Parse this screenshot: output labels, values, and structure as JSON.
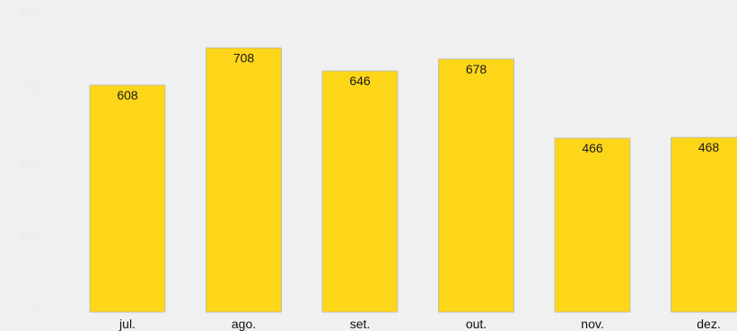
{
  "colors": {
    "background": "#f0f0f0",
    "bar_fill": "#fdd619",
    "bar_stroke": "#b8b8b8"
  },
  "chart_data": {
    "type": "bar",
    "categories": [
      "jul.",
      "ago.",
      "set.",
      "out.",
      "nov.",
      "dez."
    ],
    "values": [
      608,
      708,
      646,
      678,
      466,
      468
    ],
    "ylim": [
      0,
      800
    ],
    "y_ticks": [
      "0",
      "200",
      "400",
      "600",
      "800"
    ],
    "grid": false,
    "legend": "none"
  }
}
